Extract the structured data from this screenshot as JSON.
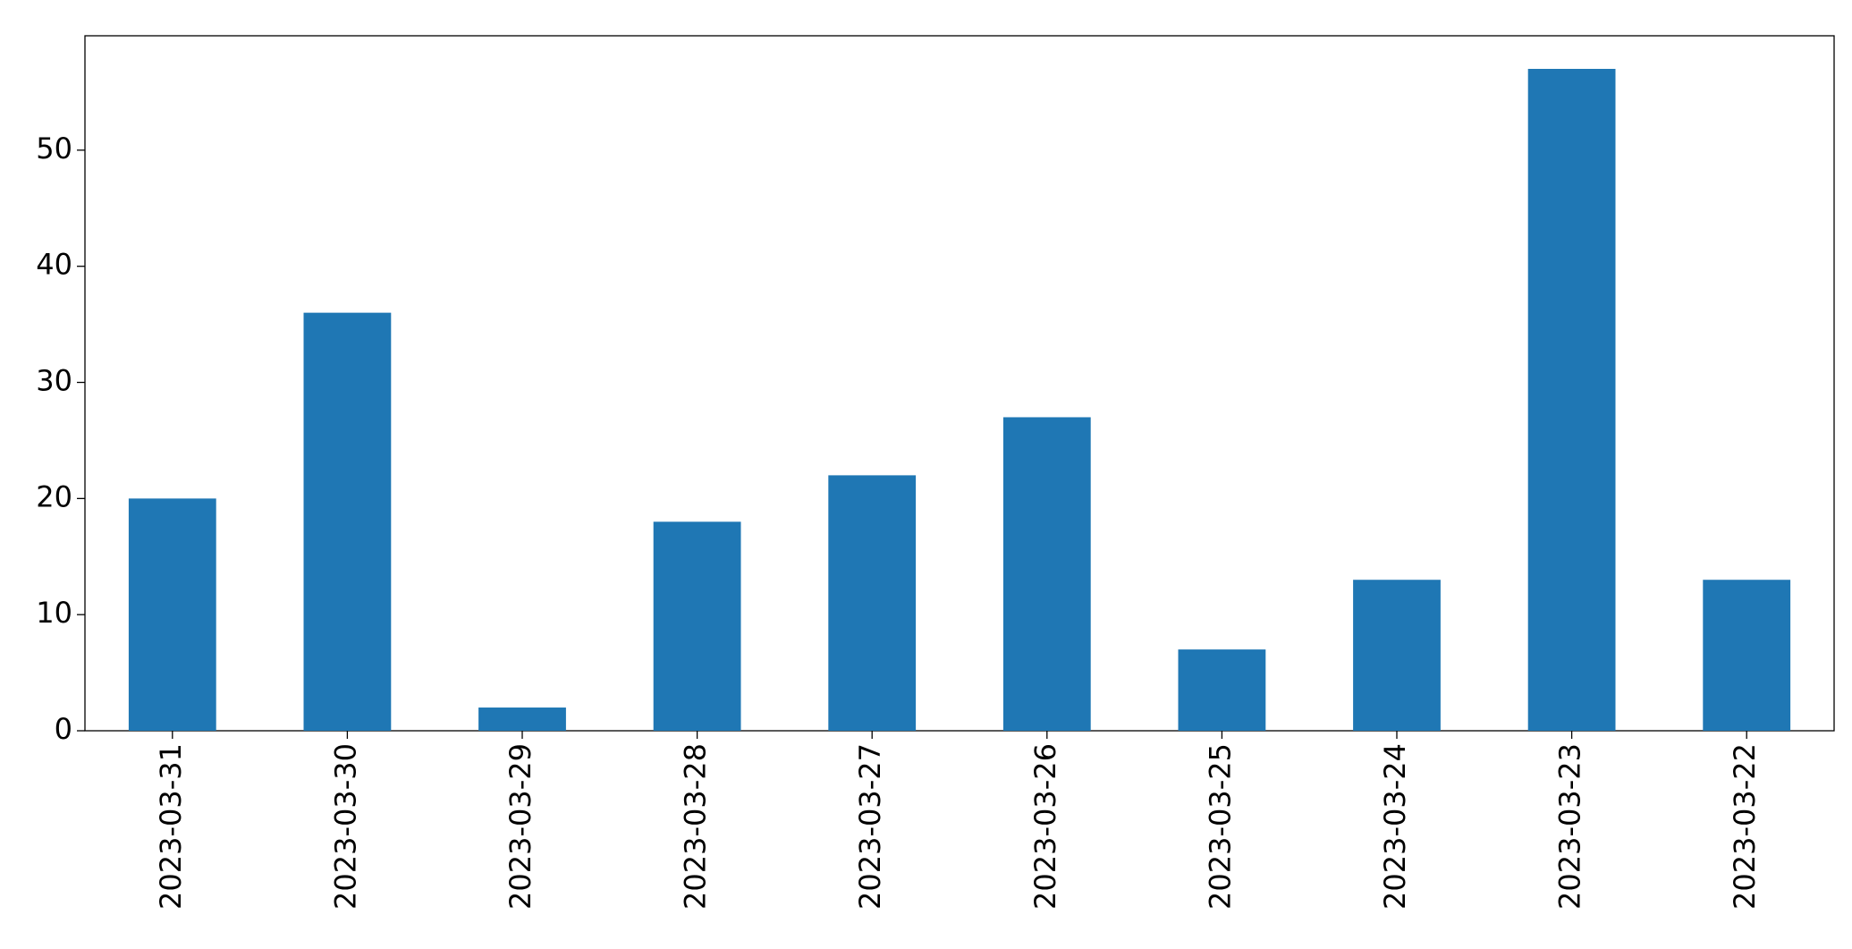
{
  "chart_data": {
    "type": "bar",
    "categories": [
      "2023-03-31",
      "2023-03-30",
      "2023-03-29",
      "2023-03-28",
      "2023-03-27",
      "2023-03-26",
      "2023-03-25",
      "2023-03-24",
      "2023-03-23",
      "2023-03-22"
    ],
    "values": [
      20,
      36,
      2,
      18,
      22,
      27,
      7,
      13,
      57,
      13
    ],
    "color": "#1f77b4",
    "ylim": [
      0,
      59.85
    ],
    "yticks": [
      0,
      10,
      20,
      30,
      40,
      50
    ],
    "grid": false
  }
}
